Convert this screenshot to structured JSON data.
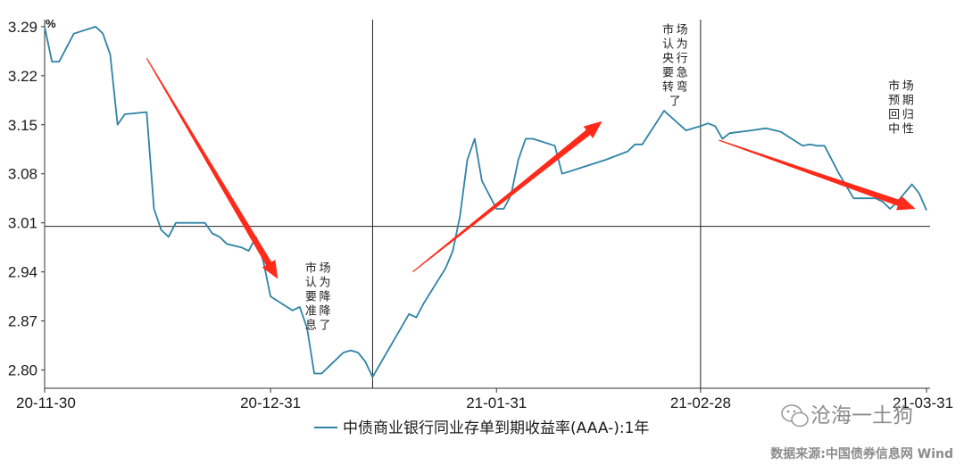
{
  "chart_data": {
    "type": "line",
    "unit_label": "%",
    "legend_label": "中债商业银行同业存单到期收益率(AAA-):1年",
    "x_tick_labels": [
      "20-11-30",
      "20-12-31",
      "21-01-31",
      "21-02-28",
      "21-03-31"
    ],
    "x_ticks": [
      0,
      31,
      62,
      90,
      121
    ],
    "xlim": [
      0,
      121
    ],
    "y_ticks": [
      2.8,
      2.87,
      2.94,
      3.01,
      3.08,
      3.15,
      3.22,
      3.29
    ],
    "ylim": [
      2.774,
      3.3
    ],
    "reference_line_y": 3.005,
    "reference_line_x": 45,
    "series_color": "#2e83a6",
    "series": [
      {
        "name": "中债商业银行同业存单到期收益率(AAA-):1年",
        "x": [
          0,
          1,
          2,
          4,
          7,
          8,
          9,
          10,
          11,
          14,
          15,
          16,
          17,
          18,
          19,
          21,
          22,
          23,
          24,
          25,
          27,
          28,
          29,
          30,
          31,
          34,
          35,
          36,
          37,
          38,
          39,
          41,
          42,
          43,
          44,
          45,
          50,
          51,
          52,
          55,
          56,
          57,
          58,
          59,
          60,
          62,
          63,
          64,
          65,
          66,
          67,
          70,
          71,
          74,
          77,
          80,
          81,
          82,
          85,
          88,
          90,
          91,
          92,
          93,
          94,
          97,
          99,
          101,
          104,
          105,
          106,
          107,
          109,
          111,
          112,
          114,
          115,
          116,
          117,
          119,
          120,
          121
        ],
        "y": [
          3.29,
          3.24,
          3.24,
          3.28,
          3.29,
          3.28,
          3.25,
          3.15,
          3.165,
          3.168,
          3.03,
          3.0,
          2.99,
          3.01,
          3.01,
          3.01,
          3.01,
          2.995,
          2.99,
          2.98,
          2.975,
          2.97,
          2.99,
          2.955,
          2.905,
          2.885,
          2.89,
          2.86,
          2.795,
          2.795,
          2.805,
          2.825,
          2.828,
          2.825,
          2.812,
          2.79,
          2.88,
          2.875,
          2.895,
          2.945,
          2.97,
          3.02,
          3.1,
          3.13,
          3.07,
          3.03,
          3.03,
          3.05,
          3.1,
          3.13,
          3.13,
          3.12,
          3.08,
          3.09,
          3.1,
          3.112,
          3.122,
          3.122,
          3.17,
          3.142,
          3.148,
          3.152,
          3.148,
          3.13,
          3.138,
          3.142,
          3.145,
          3.14,
          3.12,
          3.122,
          3.12,
          3.12,
          3.08,
          3.045,
          3.045,
          3.045,
          3.04,
          3.03,
          3.04,
          3.065,
          3.052,
          3.028
        ]
      }
    ],
    "annotations": [
      {
        "text": "市场认为要降准降息了",
        "columns": [
          "市场",
          "认为",
          "要降",
          "准降",
          "息了"
        ],
        "x": 37.5,
        "y": 2.94
      },
      {
        "text": "市场认为央行要急转弯了",
        "columns": [
          "市场",
          "认为",
          "央行",
          "要急",
          "转弯",
          "了"
        ],
        "x": 86.5,
        "y": 3.28
      },
      {
        "text": "市场预期回归中性",
        "columns": [
          "市场",
          "预期",
          "回归",
          "中性"
        ],
        "x": 117.5,
        "y": 3.2
      }
    ],
    "arrows": [
      {
        "from": [
          14,
          3.245
        ],
        "to": [
          32,
          2.93
        ]
      },
      {
        "from": [
          50.5,
          2.94
        ],
        "to": [
          76.5,
          3.155
        ]
      },
      {
        "from": [
          92.5,
          3.128
        ],
        "to": [
          119.5,
          3.03
        ]
      }
    ],
    "arrow_color": "#ff2a1a",
    "grid": false
  },
  "watermark": {
    "name": "沧海一土狗",
    "source": "数据来源:中国债券信息网 Wind"
  }
}
